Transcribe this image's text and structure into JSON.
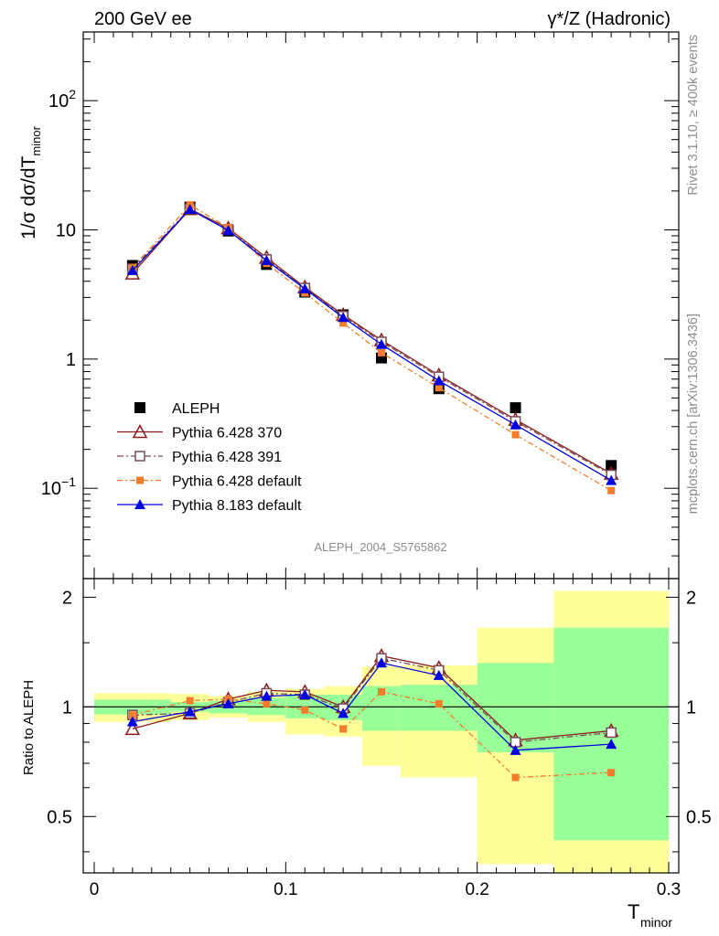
{
  "header": {
    "left": "200 GeV ee",
    "right": "γ*/Z (Hadronic)"
  },
  "side_labels": {
    "rivet": "Rivet 3.1.10, ≥ 400k events",
    "mcplots": "mcplots.cern.ch [arXiv:1306.3436]"
  },
  "analysis_id": "ALEPH_2004_S5765862",
  "colors": {
    "data": "#000000",
    "p370": "#8b1a1a",
    "p391": "#7a4a5a",
    "p6def": "#f47c2a",
    "p8def": "#0000e0",
    "band_inner": "#99ff99",
    "band_outer": "#ffff99"
  },
  "chart_data": [
    {
      "type": "scatter",
      "panel": "main",
      "ylabel": "1/σ dσ/dT_minor",
      "yscale": "log",
      "xlim": [
        0,
        0.3
      ],
      "ylim": [
        0.02,
        340
      ],
      "y_ticks": [
        {
          "v": 0.1,
          "base": "10",
          "exp": "−1"
        },
        {
          "v": 1,
          "text": "1"
        },
        {
          "v": 10,
          "text": "10"
        },
        {
          "v": 100,
          "base": "10",
          "exp": "2"
        }
      ],
      "x": [
        0.02,
        0.05,
        0.07,
        0.09,
        0.11,
        0.13,
        0.15,
        0.18,
        0.22,
        0.27
      ],
      "series": [
        {
          "name": "ALEPH",
          "marker": "square",
          "color": "#000000",
          "line": false,
          "values": [
            5.3,
            15.0,
            9.8,
            5.4,
            3.3,
            2.2,
            1.02,
            0.59,
            0.42,
            0.15
          ]
        },
        {
          "name": "Pythia 6.428 370",
          "marker": "triangle-open",
          "color": "#8b1a1a",
          "dash": "",
          "values": [
            4.6,
            14.5,
            10.3,
            6.1,
            3.6,
            2.2,
            1.4,
            0.75,
            0.34,
            0.13
          ]
        },
        {
          "name": "Pythia 6.428 391",
          "marker": "square-open",
          "color": "#7a4a5a",
          "dash": "7,3,2,3",
          "values": [
            5.0,
            14.6,
            10.1,
            5.9,
            3.55,
            2.15,
            1.36,
            0.73,
            0.33,
            0.127
          ]
        },
        {
          "name": "Pythia 6.428 default",
          "marker": "square-small",
          "color": "#f47c2a",
          "dash": "6,3,2,3",
          "values": [
            5.1,
            15.6,
            10.4,
            5.5,
            3.25,
            1.9,
            1.12,
            0.6,
            0.26,
            0.096
          ]
        },
        {
          "name": "Pythia 8.183 default",
          "marker": "triangle",
          "color": "#0000e0",
          "dash": "",
          "values": [
            4.85,
            14.4,
            9.9,
            5.8,
            3.5,
            2.1,
            1.3,
            0.68,
            0.31,
            0.115
          ]
        }
      ]
    },
    {
      "type": "line",
      "panel": "ratio",
      "ylabel": "Ratio to ALEPH",
      "xlabel": "T_minor",
      "xlim": [
        0,
        0.3
      ],
      "ylim": [
        0.35,
        2.25
      ],
      "y_ticks": [
        0.5,
        1,
        2
      ],
      "x_ticks": [
        {
          "v": 0,
          "text": "0"
        },
        {
          "v": 0.1,
          "text": "0.1"
        },
        {
          "v": 0.2,
          "text": "0.2"
        },
        {
          "v": 0.3,
          "text": "0.3"
        }
      ],
      "bands": [
        {
          "x0": 0.0,
          "x1": 0.04,
          "inner": [
            0.953,
            1.047
          ],
          "outer": [
            0.91,
            1.09
          ]
        },
        {
          "x0": 0.04,
          "x1": 0.06,
          "inner": [
            0.97,
            1.03
          ],
          "outer": [
            0.92,
            1.085
          ]
        },
        {
          "x0": 0.06,
          "x1": 0.08,
          "inner": [
            0.96,
            1.04
          ],
          "outer": [
            0.935,
            1.07
          ]
        },
        {
          "x0": 0.08,
          "x1": 0.1,
          "inner": [
            0.95,
            1.06
          ],
          "outer": [
            0.91,
            1.1
          ]
        },
        {
          "x0": 0.1,
          "x1": 0.12,
          "inner": [
            0.93,
            1.08
          ],
          "outer": [
            0.84,
            1.12
          ]
        },
        {
          "x0": 0.12,
          "x1": 0.14,
          "inner": [
            0.92,
            1.08
          ],
          "outer": [
            0.83,
            1.14
          ]
        },
        {
          "x0": 0.14,
          "x1": 0.16,
          "inner": [
            0.86,
            1.14
          ],
          "outer": [
            0.69,
            1.29
          ]
        },
        {
          "x0": 0.16,
          "x1": 0.2,
          "inner": [
            0.86,
            1.15
          ],
          "outer": [
            0.64,
            1.3
          ]
        },
        {
          "x0": 0.2,
          "x1": 0.24,
          "inner": [
            0.75,
            1.32
          ],
          "outer": [
            0.37,
            1.65
          ]
        },
        {
          "x0": 0.24,
          "x1": 0.3,
          "inner": [
            0.43,
            1.65
          ],
          "outer": [
            0.35,
            2.08
          ]
        }
      ],
      "x": [
        0.02,
        0.05,
        0.07,
        0.09,
        0.11,
        0.13,
        0.15,
        0.18,
        0.22,
        0.27
      ],
      "series": [
        {
          "name": "Pythia 6.428 370",
          "marker": "triangle-open",
          "color": "#8b1a1a",
          "dash": "",
          "values": [
            0.87,
            0.96,
            1.05,
            1.11,
            1.1,
            1.0,
            1.38,
            1.28,
            0.81,
            0.86
          ]
        },
        {
          "name": "Pythia 6.428 391",
          "marker": "square-open",
          "color": "#7a4a5a",
          "dash": "7,3,2,3",
          "values": [
            0.95,
            0.96,
            1.03,
            1.09,
            1.08,
            0.99,
            1.36,
            1.26,
            0.8,
            0.85
          ]
        },
        {
          "name": "Pythia 6.428 default",
          "marker": "square-small",
          "color": "#f47c2a",
          "dash": "6,3,2,3",
          "values": [
            0.95,
            1.04,
            1.05,
            1.02,
            0.98,
            0.87,
            1.1,
            1.02,
            0.64,
            0.66
          ]
        },
        {
          "name": "Pythia 8.183 default",
          "marker": "triangle",
          "color": "#0000e0",
          "dash": "",
          "values": [
            0.91,
            0.97,
            1.02,
            1.07,
            1.08,
            0.96,
            1.32,
            1.22,
            0.76,
            0.79
          ]
        }
      ]
    }
  ]
}
